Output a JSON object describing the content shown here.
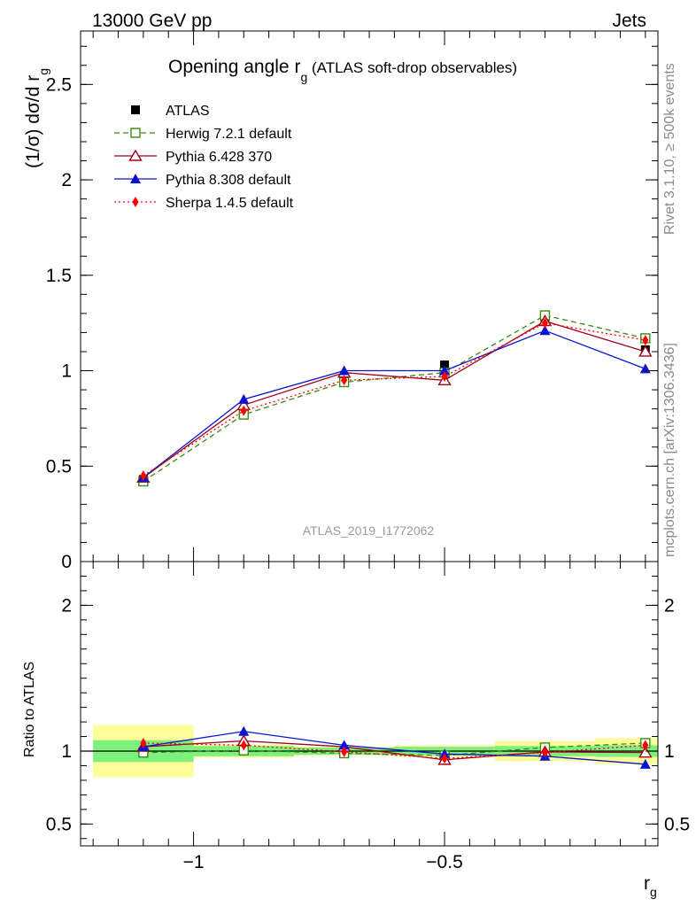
{
  "header": {
    "left": "13000 GeV pp",
    "right": "Jets"
  },
  "side_labels": {
    "rivet": "Rivet 3.1.10, ≥ 500k events",
    "mcplots": "mcplots.cern.ch [arXiv:1306.3436]"
  },
  "colors": {
    "atlas": "#000000",
    "herwig": "#3a8a10",
    "pythia6": "#a00018",
    "pythia8": "#0a14d0",
    "sherpa": "#ff0000",
    "band_inner": "#7ef07e",
    "band_outer": "#fcfc9a",
    "watermark": "#9a9a9a"
  },
  "chart_data": [
    {
      "type": "line",
      "panel": "main",
      "title_main": "Opening angle r",
      "title_sub": "g",
      "title_rest": " (ATLAS soft-drop observables)",
      "ylabel_main": "(1/σ) dσ/d r",
      "ylabel_sub": "g",
      "watermark": "ATLAS_2019_I1772062",
      "xlim": [
        -1.225,
        -0.075
      ],
      "ylim": [
        0,
        2.78
      ],
      "yticks": [
        0,
        0.5,
        1,
        1.5,
        2,
        2.5
      ],
      "ytick_labels": [
        "0",
        "0.5",
        "1",
        "1.5",
        "2",
        "2.5"
      ],
      "x": [
        -1.1,
        -0.9,
        -0.7,
        -0.5,
        -0.3,
        -0.1
      ],
      "xbins": [
        -1.2,
        -1.0,
        -0.8,
        -0.6,
        -0.4,
        -0.2,
        0.0
      ],
      "legend": [
        "ATLAS",
        "Herwig 7.2.1 default",
        "Pythia 6.428 370",
        "Pythia 8.308 default",
        "Sherpa 1.4.5 default"
      ],
      "series": [
        {
          "name": "ATLAS",
          "key": "atlas",
          "marker": "square-filled",
          "values": [
            0.43,
            0.77,
            0.96,
            1.03,
            1.26,
            1.11
          ]
        },
        {
          "name": "Herwig 7.2.1 default",
          "key": "herwig",
          "marker": "square-open",
          "dash": "dashed",
          "values": [
            0.42,
            0.77,
            0.94,
            0.99,
            1.29,
            1.17
          ]
        },
        {
          "name": "Pythia 6.428 370",
          "key": "pythia6",
          "marker": "triangle-open",
          "dash": "solid",
          "values": [
            0.44,
            0.82,
            0.99,
            0.95,
            1.26,
            1.1
          ]
        },
        {
          "name": "Pythia 8.308 default",
          "key": "pythia8",
          "marker": "triangle-filled",
          "dash": "solid",
          "values": [
            0.44,
            0.85,
            1.0,
            1.0,
            1.21,
            1.01
          ]
        },
        {
          "name": "Sherpa 1.4.5 default",
          "key": "sherpa",
          "marker": "diamond-filled",
          "dash": "dotted",
          "values": [
            0.45,
            0.79,
            0.95,
            0.97,
            1.25,
            1.16
          ]
        }
      ]
    },
    {
      "type": "line",
      "panel": "ratio",
      "ylabel": "Ratio to ATLAS",
      "xlabel_main": "r",
      "xlabel_sub": "g",
      "xlim": [
        -1.225,
        -0.075
      ],
      "ylim": [
        0.35,
        2.3
      ],
      "yticks": [
        0.5,
        1,
        2
      ],
      "ytick_labels": [
        "0.5",
        "1",
        "2"
      ],
      "xticks": [
        -1.0,
        -0.5
      ],
      "xtick_labels": [
        "−1",
        "−0.5"
      ],
      "x": [
        -1.1,
        -0.9,
        -0.7,
        -0.5,
        -0.3,
        -0.1
      ],
      "xbins": [
        -1.2,
        -1.0,
        -0.8,
        -0.6,
        -0.4,
        -0.2,
        0.0
      ],
      "band_inner": [
        0.075,
        0.035,
        0.025,
        0.03,
        0.035,
        0.04
      ],
      "band_outer": [
        0.18,
        0.045,
        0.03,
        0.04,
        0.07,
        0.09
      ],
      "series": [
        {
          "name": "Herwig 7.2.1 default",
          "key": "herwig",
          "marker": "square-open",
          "dash": "dashed",
          "values": [
            0.99,
            1.005,
            0.985,
            0.97,
            1.025,
            1.055
          ]
        },
        {
          "name": "Pythia 6.428 370",
          "key": "pythia6",
          "marker": "triangle-open",
          "dash": "solid",
          "values": [
            1.03,
            1.07,
            1.03,
            0.94,
            0.995,
            0.99
          ]
        },
        {
          "name": "Pythia 8.308 default",
          "key": "pythia8",
          "marker": "triangle-filled",
          "dash": "solid",
          "values": [
            1.03,
            1.135,
            1.04,
            0.98,
            0.965,
            0.91
          ]
        },
        {
          "name": "Sherpa 1.4.5 default",
          "key": "sherpa",
          "marker": "diamond-filled",
          "dash": "dotted",
          "values": [
            1.055,
            1.04,
            0.995,
            0.95,
            0.99,
            1.04
          ]
        }
      ]
    }
  ]
}
